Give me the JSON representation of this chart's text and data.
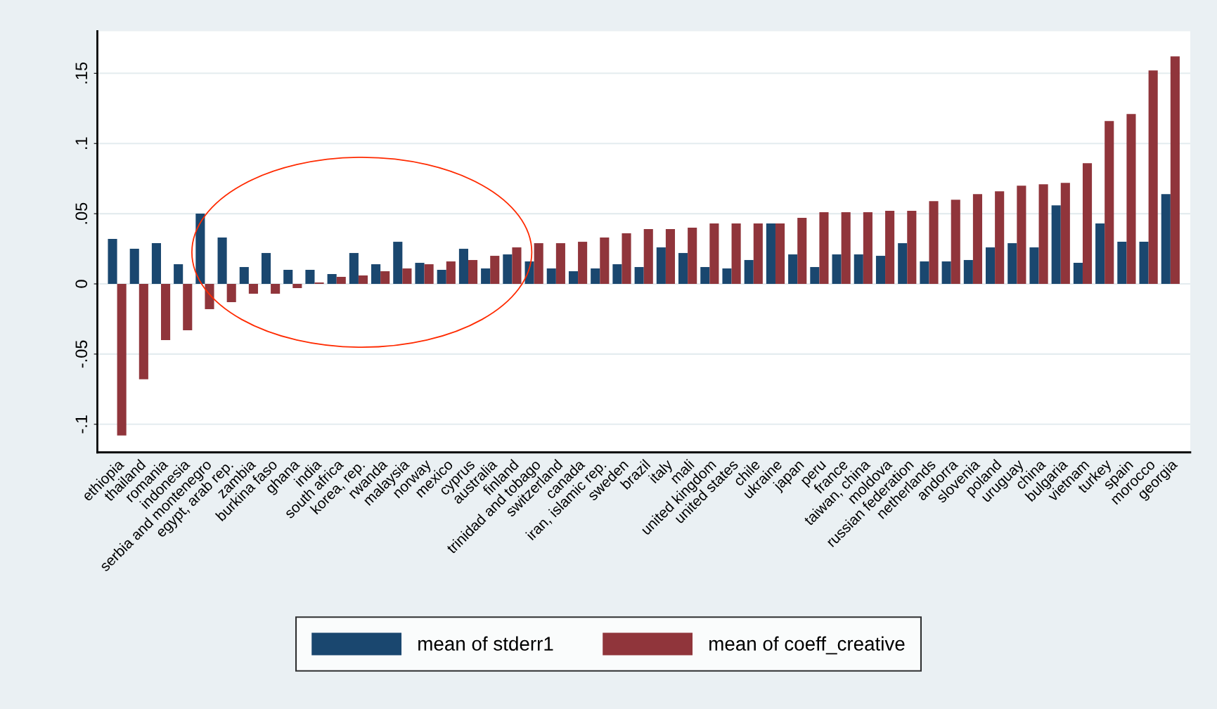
{
  "chart_data": {
    "type": "bar",
    "categories": [
      "ethiopia",
      "thailand",
      "romania",
      "indonesia",
      "serbia and montenegro",
      "egypt, arab rep.",
      "zambia",
      "burkina faso",
      "ghana",
      "india",
      "south africa",
      "korea, rep.",
      "rwanda",
      "malaysia",
      "norway",
      "mexico",
      "cyprus",
      "australia",
      "finland",
      "trinidad and tobago",
      "switzerland",
      "canada",
      "iran, islamic rep.",
      "sweden",
      "brazil",
      "italy",
      "mali",
      "united kingdom",
      "united states",
      "chile",
      "ukraine",
      "japan",
      "peru",
      "france",
      "taiwan, china",
      "moldova",
      "russian federation",
      "netherlands",
      "andorra",
      "slovenia",
      "poland",
      "uruguay",
      "china",
      "bulgaria",
      "vietnam",
      "turkey",
      "spain",
      "morocco",
      "georgia"
    ],
    "series": [
      {
        "name": "mean of stderr1",
        "color": "#1a476f",
        "values": [
          0.032,
          0.025,
          0.029,
          0.014,
          0.05,
          0.033,
          0.012,
          0.022,
          0.01,
          0.01,
          0.007,
          0.022,
          0.014,
          0.03,
          0.015,
          0.01,
          0.025,
          0.011,
          0.021,
          0.016,
          0.011,
          0.009,
          0.011,
          0.014,
          0.012,
          0.026,
          0.022,
          0.012,
          0.011,
          0.017,
          0.043,
          0.021,
          0.012,
          0.021,
          0.021,
          0.02,
          0.029,
          0.016,
          0.016,
          0.017,
          0.026,
          0.029,
          0.026,
          0.056,
          0.015,
          0.043,
          0.03,
          0.03,
          0.064
        ]
      },
      {
        "name": "mean of coeff_creative",
        "color": "#90353b",
        "values": [
          -0.108,
          -0.068,
          -0.04,
          -0.033,
          -0.018,
          -0.013,
          -0.007,
          -0.007,
          -0.003,
          0.001,
          0.005,
          0.006,
          0.009,
          0.011,
          0.014,
          0.016,
          0.017,
          0.02,
          0.026,
          0.029,
          0.029,
          0.03,
          0.033,
          0.036,
          0.039,
          0.039,
          0.04,
          0.043,
          0.043,
          0.043,
          0.043,
          0.047,
          0.051,
          0.051,
          0.051,
          0.052,
          0.052,
          0.059,
          0.06,
          0.064,
          0.066,
          0.07,
          0.071,
          0.072,
          0.086,
          0.116,
          0.121,
          0.152,
          0.162
        ]
      }
    ],
    "ylim": [
      -0.12,
      0.18
    ],
    "yticks": [
      {
        "value": -0.1,
        "label": "-.1"
      },
      {
        "value": -0.05,
        "label": "-.05"
      },
      {
        "value": 0,
        "label": "0"
      },
      {
        "value": 0.05,
        "label": ".05"
      },
      {
        "value": 0.1,
        "label": ".1"
      },
      {
        "value": 0.15,
        "label": ".15"
      }
    ],
    "grid": "y",
    "legend": "bottom"
  }
}
